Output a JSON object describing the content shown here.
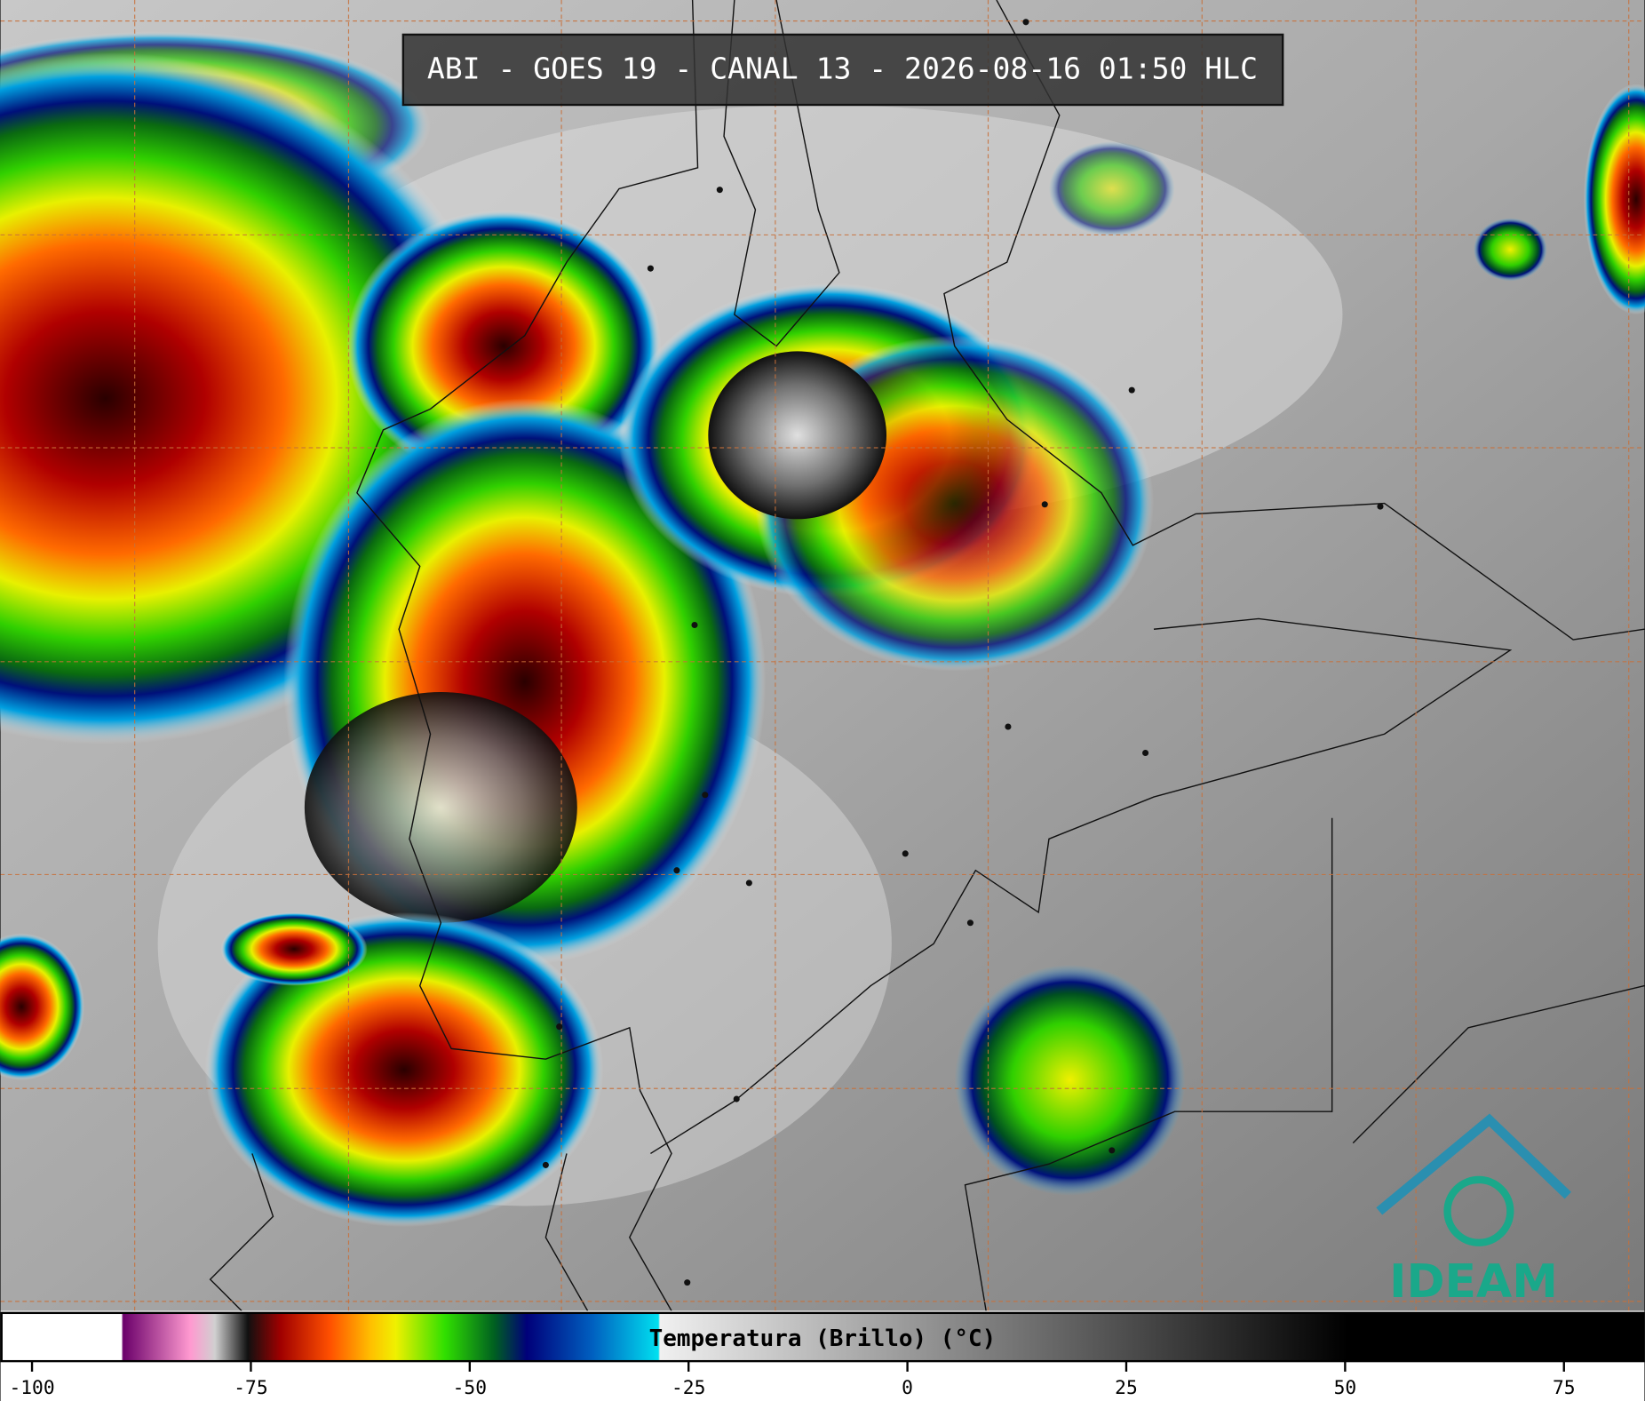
{
  "title": "ABI - GOES 19 - CANAL 13 - 2026-08-16 01:50 HLC",
  "colorbar": {
    "label": "Temperatura (Brillo) (°C)",
    "lim": [
      -103.6,
      84.2
    ],
    "ticks": [
      -100,
      -75,
      -50,
      -25,
      0,
      25,
      50,
      75
    ]
  },
  "logo": "IDEAM"
}
